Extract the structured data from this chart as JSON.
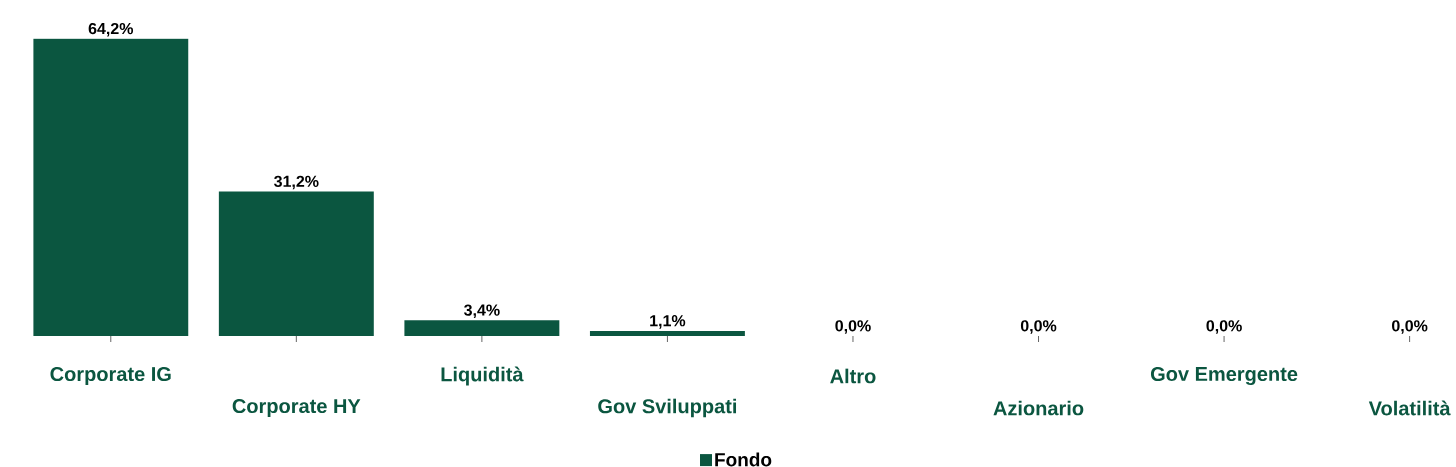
{
  "chart_data": {
    "type": "bar",
    "categories": [
      "Corporate IG",
      "Corporate HY",
      "Liquidità",
      "Gov Sviluppati",
      "Altro",
      "Azionario",
      "Gov Emergente",
      "Volatilità"
    ],
    "series": [
      {
        "name": "Fondo",
        "color": "#0b5640",
        "values": [
          64.2,
          31.2,
          3.4,
          1.1,
          0,
          0,
          0,
          0
        ],
        "value_labels": [
          "64,2%",
          "31,2%",
          "3,4%",
          "1,1%",
          "0,0%",
          "0,0%",
          "0,0%",
          "0,0%"
        ]
      }
    ],
    "tick_labels": "x",
    "legend": "bottom",
    "grid": false
  }
}
